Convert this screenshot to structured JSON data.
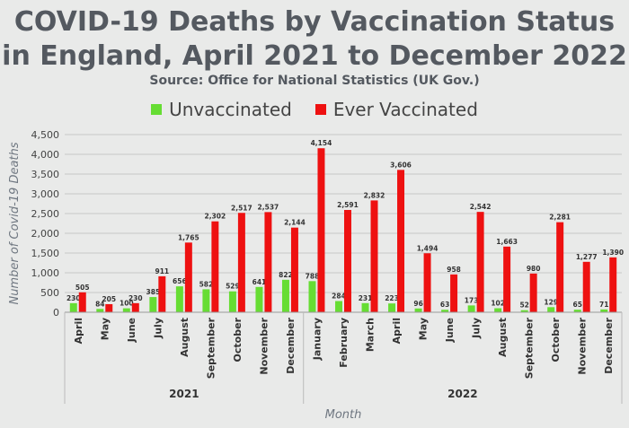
{
  "chart_data": {
    "type": "bar",
    "title": "COVID-19 Deaths by Vaccination Status in England, April 2021 to December 2022",
    "subtitle": "Source: Office for National Statistics (UK Gov.)",
    "xlabel": "Month",
    "ylabel": "Number of Covid-19 Deaths",
    "ylim": [
      0,
      4500
    ],
    "yticks": [
      0,
      500,
      1000,
      1500,
      2000,
      2500,
      3000,
      3500,
      4000,
      4500
    ],
    "ytick_labels": [
      "0",
      "500",
      "1,000",
      "1,500",
      "2,000",
      "2,500",
      "3,000",
      "3,500",
      "4,000",
      "4,500"
    ],
    "grid": true,
    "legend_position": "top",
    "categories": [
      "April",
      "May",
      "June",
      "July",
      "August",
      "September",
      "October",
      "November",
      "December",
      "January",
      "February",
      "March",
      "April",
      "May",
      "June",
      "July",
      "August",
      "September",
      "October",
      "November",
      "December"
    ],
    "year_groups": [
      {
        "label": "2021",
        "count": 9
      },
      {
        "label": "2022",
        "count": 12
      }
    ],
    "series": [
      {
        "name": "Unvaccinated",
        "color": "#66dd33",
        "values": [
          230,
          84,
          100,
          385,
          656,
          582,
          529,
          641,
          822,
          788,
          284,
          231,
          223,
          96,
          63,
          173,
          102,
          52,
          129,
          65,
          71
        ],
        "labels": [
          "230",
          "84",
          "100",
          "385",
          "656",
          "582",
          "529",
          "641",
          "822",
          "788",
          "284",
          "231",
          "223",
          "96",
          "63",
          "173",
          "102",
          "52",
          "129",
          "65",
          "71"
        ]
      },
      {
        "name": "Ever Vaccinated",
        "color": "#ee1111",
        "values": [
          505,
          205,
          230,
          911,
          1765,
          2302,
          2517,
          2537,
          2144,
          4154,
          2591,
          2832,
          3606,
          1494,
          958,
          2542,
          1663,
          980,
          2281,
          1277,
          1390
        ],
        "labels": [
          "505",
          "205",
          "230",
          "911",
          "1,765",
          "2,302",
          "2,517",
          "2,537",
          "2,144",
          "4,154",
          "2,591",
          "2,832",
          "3,606",
          "1,494",
          "958",
          "2,542",
          "1,663",
          "980",
          "2,281",
          "1,277",
          "1,390"
        ]
      }
    ]
  }
}
